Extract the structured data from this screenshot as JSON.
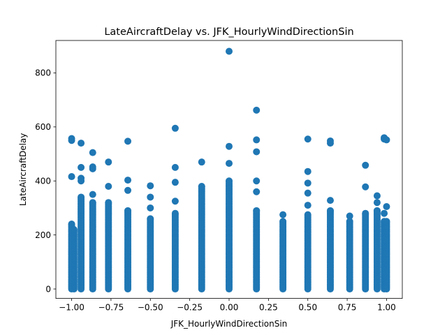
{
  "chart_data": {
    "type": "scatter",
    "title": "LateAircraftDelay vs. JFK_HourlyWindDirectionSin",
    "xlabel": "JFK_HourlyWindDirectionSin",
    "ylabel": "LateAircraftDelay",
    "xlim": [
      -1.1,
      1.1
    ],
    "ylim": [
      -35,
      920
    ],
    "xticks": [
      -1.0,
      -0.75,
      -0.5,
      -0.25,
      0.0,
      0.25,
      0.5,
      0.75,
      1.0
    ],
    "xtick_labels": [
      "−1.00",
      "−0.75",
      "−0.50",
      "−0.25",
      "0.00",
      "0.25",
      "0.50",
      "0.75",
      "1.00"
    ],
    "yticks": [
      0,
      200,
      400,
      600,
      800
    ],
    "ytick_labels": [
      "0",
      "200",
      "400",
      "600",
      "800"
    ],
    "grid": false,
    "marker_color": "#1f77b4",
    "columns": [
      {
        "x": -1.0,
        "max": 240,
        "outliers": [
          416,
          550,
          557
        ]
      },
      {
        "x": -0.985,
        "max": 220,
        "outliers": []
      },
      {
        "x": -0.94,
        "max": 340,
        "outliers": [
          400,
          410,
          450,
          540
        ]
      },
      {
        "x": -0.866,
        "max": 320,
        "outliers": [
          350,
          445,
          452,
          505
        ]
      },
      {
        "x": -0.766,
        "max": 320,
        "outliers": [
          380,
          470
        ]
      },
      {
        "x": -0.643,
        "max": 290,
        "outliers": [
          365,
          403,
          547
        ]
      },
      {
        "x": -0.5,
        "max": 260,
        "outliers": [
          300,
          340,
          382
        ]
      },
      {
        "x": -0.342,
        "max": 280,
        "outliers": [
          325,
          395,
          450,
          595
        ]
      },
      {
        "x": -0.174,
        "max": 380,
        "outliers": [
          470
        ]
      },
      {
        "x": 0.0,
        "max": 400,
        "outliers": [
          465,
          528,
          880
        ]
      },
      {
        "x": 0.174,
        "max": 290,
        "outliers": [
          360,
          400,
          508,
          552,
          662
        ]
      },
      {
        "x": 0.342,
        "max": 250,
        "outliers": [
          275
        ]
      },
      {
        "x": 0.5,
        "max": 275,
        "outliers": [
          310,
          355,
          392,
          435,
          555
        ]
      },
      {
        "x": 0.643,
        "max": 290,
        "outliers": [
          328,
          540,
          548
        ]
      },
      {
        "x": 0.766,
        "max": 250,
        "outliers": [
          270
        ]
      },
      {
        "x": 0.866,
        "max": 280,
        "outliers": [
          378,
          458
        ]
      },
      {
        "x": 0.94,
        "max": 290,
        "outliers": [
          320,
          345
        ]
      },
      {
        "x": 0.985,
        "max": 250,
        "outliers": [
          280,
          555,
          560
        ]
      },
      {
        "x": 1.0,
        "max": 250,
        "outliers": [
          305,
          552
        ]
      }
    ]
  }
}
